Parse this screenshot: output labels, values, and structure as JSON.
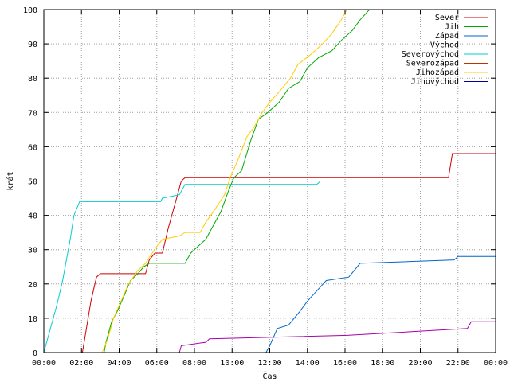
{
  "chart_data": {
    "type": "line",
    "xlabel": "Čas",
    "ylabel": "krát",
    "xlim": [
      0,
      24
    ],
    "ylim": [
      0,
      100
    ],
    "x_ticks": [
      {
        "value": 0,
        "label": "00:00"
      },
      {
        "value": 2,
        "label": "02:00"
      },
      {
        "value": 4,
        "label": "04:00"
      },
      {
        "value": 6,
        "label": "06:00"
      },
      {
        "value": 8,
        "label": "08:00"
      },
      {
        "value": 10,
        "label": "10:00"
      },
      {
        "value": 12,
        "label": "12:00"
      },
      {
        "value": 14,
        "label": "14:00"
      },
      {
        "value": 16,
        "label": "16:00"
      },
      {
        "value": 18,
        "label": "18:00"
      },
      {
        "value": 20,
        "label": "20:00"
      },
      {
        "value": 22,
        "label": "22:00"
      },
      {
        "value": 24,
        "label": "00:00"
      }
    ],
    "y_ticks": [
      0,
      10,
      20,
      30,
      40,
      50,
      60,
      70,
      80,
      90,
      100
    ],
    "grid": true,
    "legend_position": "top-right",
    "series": [
      {
        "name": "Sever",
        "color": "#cc0000",
        "points": [
          [
            0,
            0
          ],
          [
            2.05,
            0
          ],
          [
            2.2,
            5
          ],
          [
            2.5,
            15
          ],
          [
            2.8,
            22
          ],
          [
            3.0,
            23
          ],
          [
            5.4,
            23
          ],
          [
            5.6,
            27
          ],
          [
            5.9,
            29
          ],
          [
            6.3,
            29
          ],
          [
            6.6,
            36
          ],
          [
            7.0,
            44
          ],
          [
            7.3,
            50
          ],
          [
            7.5,
            51
          ],
          [
            21.5,
            51
          ],
          [
            21.7,
            58
          ],
          [
            24,
            58
          ]
        ]
      },
      {
        "name": "Jih",
        "color": "#00aa00",
        "points": [
          [
            0,
            0
          ],
          [
            3.2,
            0
          ],
          [
            3.3,
            3
          ],
          [
            3.6,
            9
          ],
          [
            3.9,
            12
          ],
          [
            4.3,
            17
          ],
          [
            4.6,
            21
          ],
          [
            5.0,
            23
          ],
          [
            5.3,
            25
          ],
          [
            5.6,
            26
          ],
          [
            7.5,
            26
          ],
          [
            7.8,
            29
          ],
          [
            8.2,
            31
          ],
          [
            8.6,
            33
          ],
          [
            9.0,
            37
          ],
          [
            9.4,
            41
          ],
          [
            9.8,
            47
          ],
          [
            10.1,
            51
          ],
          [
            10.5,
            53
          ],
          [
            11.0,
            62
          ],
          [
            11.4,
            68
          ],
          [
            11.9,
            70
          ],
          [
            12.5,
            73
          ],
          [
            13.0,
            77
          ],
          [
            13.6,
            79
          ],
          [
            14.0,
            83
          ],
          [
            14.6,
            86
          ],
          [
            15.3,
            88
          ],
          [
            15.8,
            91
          ],
          [
            16.4,
            94
          ],
          [
            16.8,
            97
          ],
          [
            17.3,
            100
          ],
          [
            24,
            100
          ]
        ]
      },
      {
        "name": "Západ",
        "color": "#0066cc",
        "points": [
          [
            0,
            0
          ],
          [
            11.8,
            0
          ],
          [
            12.0,
            2
          ],
          [
            12.4,
            7
          ],
          [
            13.0,
            8
          ],
          [
            13.6,
            12
          ],
          [
            14.0,
            15
          ],
          [
            14.5,
            18
          ],
          [
            15.0,
            21
          ],
          [
            16.2,
            22
          ],
          [
            16.8,
            26
          ],
          [
            21.8,
            27
          ],
          [
            22.0,
            28
          ],
          [
            24,
            28
          ]
        ]
      },
      {
        "name": "Východ",
        "color": "#aa00aa",
        "points": [
          [
            0,
            0
          ],
          [
            7.2,
            0
          ],
          [
            7.3,
            2
          ],
          [
            8.6,
            3
          ],
          [
            8.8,
            4
          ],
          [
            16.1,
            5
          ],
          [
            22.5,
            7
          ],
          [
            22.7,
            9
          ],
          [
            24,
            9
          ]
        ]
      },
      {
        "name": "Severovýchod",
        "color": "#00cccc",
        "points": [
          [
            0,
            0
          ],
          [
            0.3,
            6
          ],
          [
            0.7,
            14
          ],
          [
            1.0,
            21
          ],
          [
            1.4,
            33
          ],
          [
            1.6,
            40
          ],
          [
            1.9,
            44
          ],
          [
            6.2,
            44
          ],
          [
            6.3,
            45
          ],
          [
            7.2,
            46
          ],
          [
            7.5,
            49
          ],
          [
            14.5,
            49
          ],
          [
            14.7,
            50
          ],
          [
            24,
            50
          ]
        ]
      },
      {
        "name": "Severozápad",
        "color": "#bb3300",
        "points": []
      },
      {
        "name": "Jihozápad",
        "color": "#ffcc00",
        "points": [
          [
            0,
            0
          ],
          [
            3.1,
            0
          ],
          [
            3.4,
            4
          ],
          [
            3.7,
            10
          ],
          [
            4.1,
            15
          ],
          [
            4.5,
            20
          ],
          [
            5.0,
            24
          ],
          [
            5.4,
            26
          ],
          [
            6.0,
            31
          ],
          [
            6.3,
            33
          ],
          [
            7.2,
            34
          ],
          [
            7.5,
            35
          ],
          [
            8.3,
            35
          ],
          [
            8.6,
            38
          ],
          [
            9.0,
            41
          ],
          [
            9.6,
            46
          ],
          [
            9.9,
            51
          ],
          [
            10.3,
            56
          ],
          [
            10.8,
            63
          ],
          [
            11.2,
            66
          ],
          [
            11.6,
            70
          ],
          [
            12.0,
            73
          ],
          [
            12.5,
            76
          ],
          [
            13.1,
            80
          ],
          [
            13.5,
            84
          ],
          [
            14.2,
            87
          ],
          [
            14.8,
            90
          ],
          [
            15.3,
            93
          ],
          [
            15.8,
            97
          ],
          [
            16.1,
            100
          ],
          [
            24,
            100
          ]
        ]
      },
      {
        "name": "Jihovýchod",
        "color": "#000099",
        "points": []
      }
    ]
  }
}
